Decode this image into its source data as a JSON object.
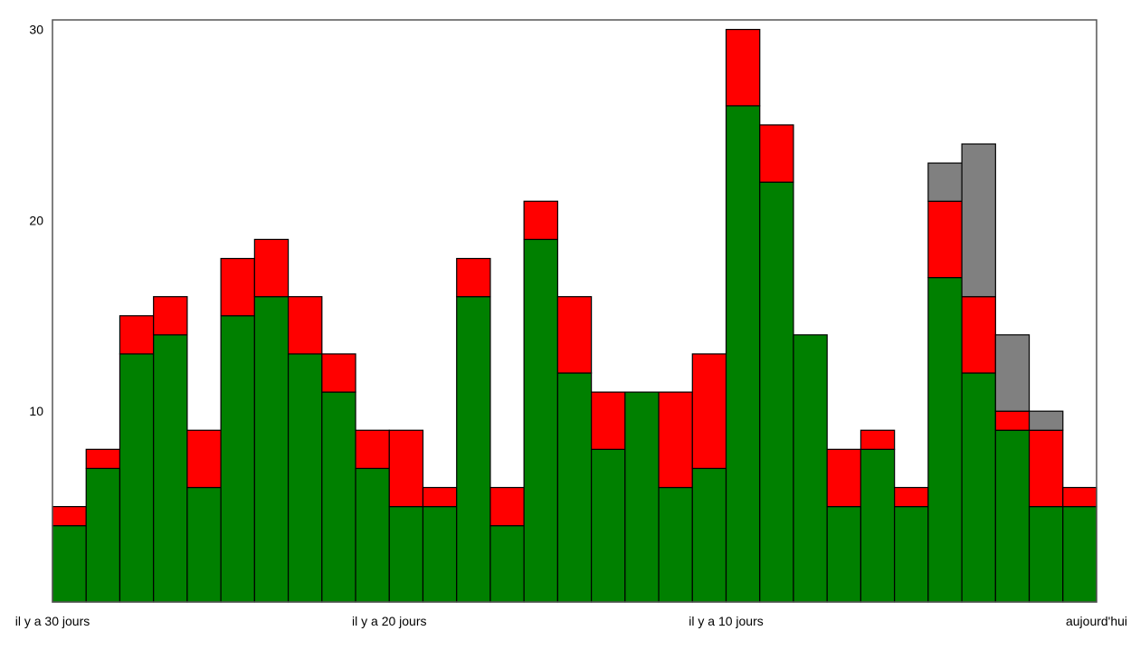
{
  "chart_data": {
    "type": "bar",
    "stacked": true,
    "x_tick_labels": [
      "il y a 30 jours",
      "il y a 20 jours",
      "il y a 10 jours",
      "aujourd'hui"
    ],
    "x_tick_positions": [
      0,
      10,
      20,
      31
    ],
    "y_ticks": [
      10,
      20,
      30
    ],
    "ylim": [
      0,
      30.5
    ],
    "grid": false,
    "colors": {
      "green": "#008000",
      "red": "#ff0000",
      "gray": "#808080"
    },
    "series": [
      {
        "values": [
          4,
          7,
          13,
          14,
          6,
          15,
          16,
          13,
          11,
          7,
          5,
          5,
          16,
          4,
          19,
          12,
          8,
          11,
          6,
          7,
          26,
          22,
          14,
          5,
          8,
          5,
          17,
          12,
          9,
          5,
          5
        ]
      },
      {
        "values": [
          1,
          1,
          2,
          2,
          3,
          3,
          3,
          3,
          2,
          2,
          4,
          1,
          2,
          2,
          2,
          4,
          3,
          0,
          5,
          6,
          4,
          3,
          0,
          3,
          1,
          1,
          4,
          4,
          1,
          4,
          1
        ]
      },
      {
        "values": [
          0,
          0,
          0,
          0,
          0,
          0,
          0,
          0,
          0,
          0,
          0,
          0,
          0,
          0,
          0,
          0,
          0,
          0,
          0,
          0,
          0,
          0,
          0,
          0,
          0,
          0,
          2,
          8,
          4,
          1,
          0
        ]
      }
    ]
  }
}
